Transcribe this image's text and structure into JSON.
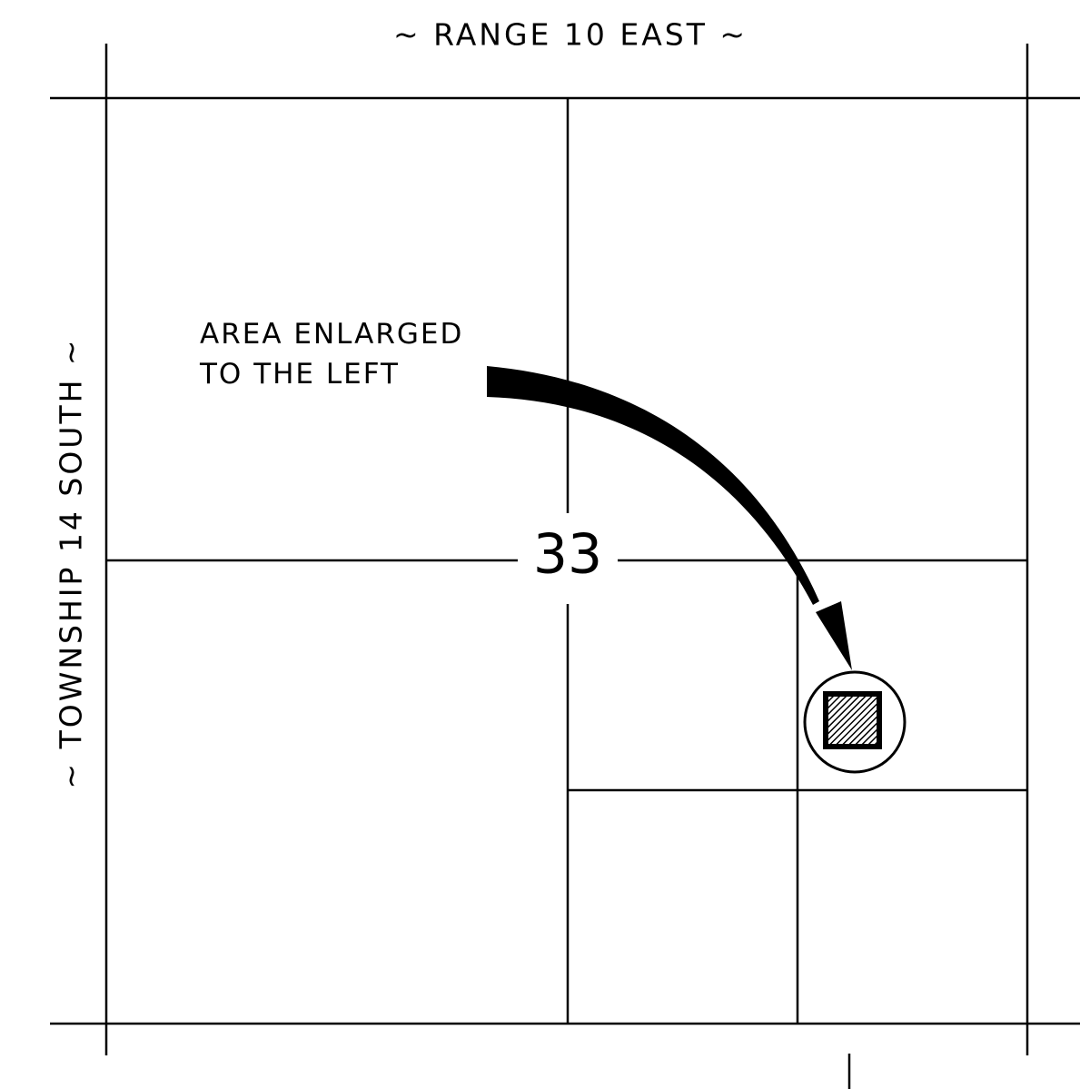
{
  "header": {
    "title": "~ RANGE 10 EAST ~",
    "side_title": "~ TOWNSHIP 14 SOUTH ~"
  },
  "annotation": {
    "lines": [
      "AREA ENLARGED",
      "TO THE LEFT"
    ]
  },
  "section": {
    "label": "33"
  }
}
